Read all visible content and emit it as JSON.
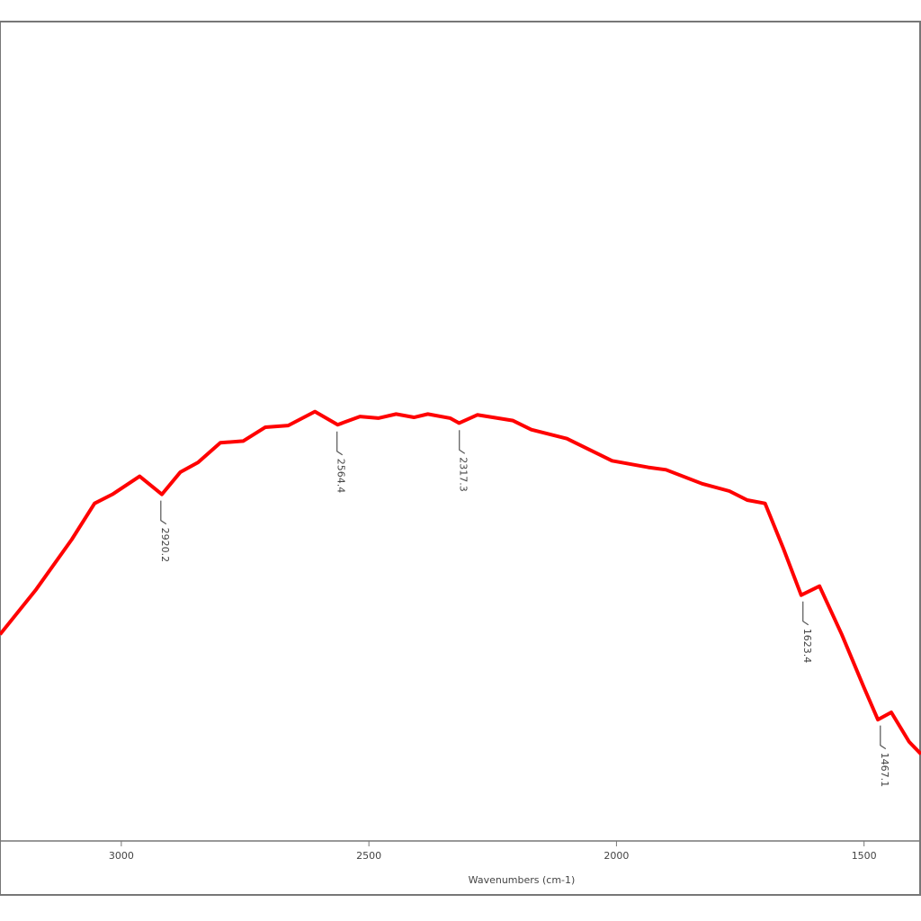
{
  "chart_data": {
    "type": "line",
    "xlabel": "Wavenumbers (cm-1)",
    "x": [
      3245,
      3172,
      3100,
      3054,
      3018,
      2963,
      2918,
      2881,
      2845,
      2800,
      2754,
      2709,
      2663,
      2609,
      2563,
      2518,
      2481,
      2445,
      2409,
      2381,
      2336,
      2318,
      2281,
      2209,
      2172,
      2100,
      2009,
      1936,
      1900,
      1827,
      1772,
      1736,
      1700,
      1663,
      1627,
      1590,
      1545,
      1500,
      1472,
      1445,
      1409,
      1385
    ],
    "series": [
      {
        "color": "#ff0000",
        "values": [
          25.2,
          30.7,
          36.8,
          41.2,
          42.3,
          44.5,
          42.3,
          45.0,
          46.2,
          48.6,
          48.8,
          50.5,
          50.7,
          52.4,
          50.8,
          51.8,
          51.6,
          52.1,
          51.7,
          52.1,
          51.6,
          51.0,
          52.0,
          51.3,
          50.2,
          49.1,
          46.4,
          45.6,
          45.3,
          43.6,
          42.7,
          41.6,
          41.2,
          35.7,
          30.0,
          31.1,
          25.2,
          18.7,
          14.8,
          15.7,
          12.1,
          10.6
        ]
      }
    ],
    "peaks": [
      2920.2,
      2564.4,
      2317.3,
      1623.4,
      1467.1
    ],
    "xlim": [
      3245,
      1385
    ],
    "xticks": [
      3000,
      2500,
      2000,
      1500
    ],
    "ylim": [
      0,
      100
    ]
  }
}
